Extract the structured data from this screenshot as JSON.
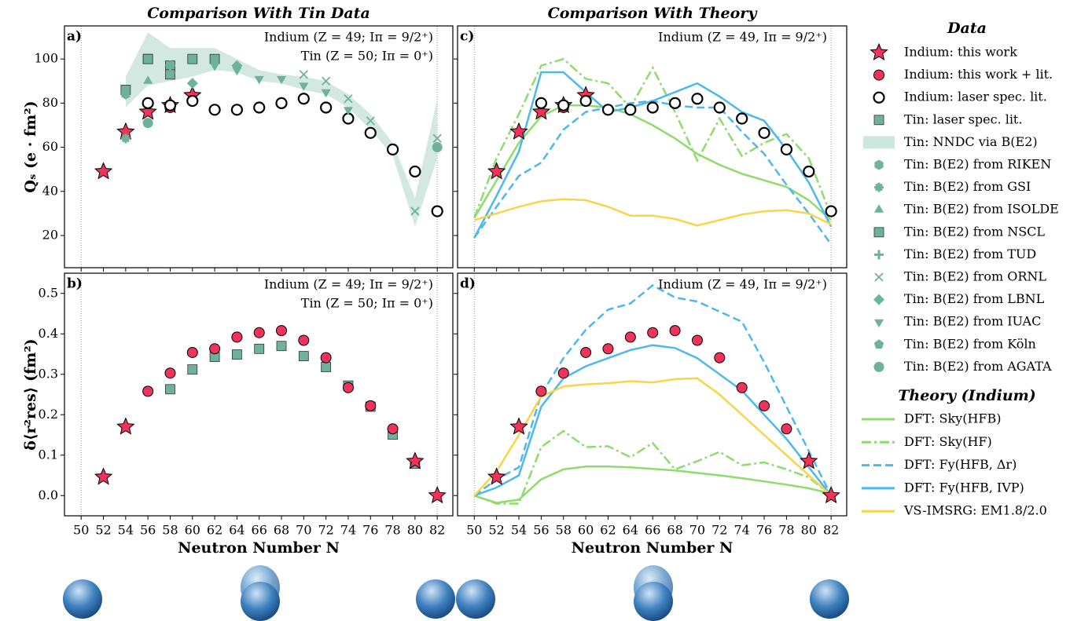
{
  "chart_data": [
    {
      "type": "scatter",
      "title": "Comparison With Tin Data",
      "label": "a)",
      "ylabel": "Qₛ (e · fm²)",
      "legend_title": "Data",
      "annotations": [
        {
          "text": "Indium (Z = 49; Iπ = 9/2⁺)",
          "color": "#e8345a"
        },
        {
          "text": "Tin (Z = 50; Iπ = 0⁺)",
          "color": "#5fa88f"
        }
      ],
      "xlim": [
        48.5,
        83.4
      ],
      "ylim": [
        5.4,
        115
      ],
      "xticks": [
        50,
        52,
        54,
        56,
        58,
        60,
        62,
        64,
        66,
        68,
        70,
        72,
        74,
        76,
        78,
        80,
        82
      ],
      "yticks": [
        20,
        40,
        60,
        80,
        100
      ],
      "series": [
        {
          "name": "Indium: this work",
          "marker": "star",
          "color": "#f0335a",
          "x": [
            52,
            54,
            56,
            58,
            60
          ],
          "values": [
            49,
            67,
            76,
            79,
            83.5
          ]
        },
        {
          "name": "Indium: this work + lit.",
          "marker": "circle",
          "color": "#f0335a",
          "x": [
            58,
            60,
            62,
            64,
            66
          ],
          "values": [
            78,
            81,
            77,
            77,
            78
          ]
        },
        {
          "name": "Indium: laser spec. lit.",
          "marker": "open-circle",
          "color": "#000000",
          "x": [
            56,
            58,
            60,
            62,
            64,
            66,
            68,
            70,
            72,
            74,
            76,
            78,
            80,
            82
          ],
          "values": [
            80,
            79,
            81,
            77,
            77,
            78,
            80,
            82,
            78,
            73,
            66.5,
            59,
            49,
            31
          ]
        },
        {
          "name": "Tin: laser spec. lit.",
          "marker": "square",
          "color": "#6fb29c",
          "x": [
            54,
            56,
            58,
            60,
            62
          ],
          "values": [
            86,
            100,
            97,
            100,
            100
          ]
        },
        {
          "name": "Tin: NNDC via B(E2)",
          "marker": "band",
          "color": "#cde6de",
          "x": [
            54,
            56,
            58,
            60,
            62,
            64,
            66,
            68,
            70,
            72,
            74,
            76,
            78,
            80,
            82
          ],
          "lower": [
            78,
            88,
            90,
            92,
            95,
            94,
            90,
            89,
            86,
            84,
            78,
            68,
            56,
            24,
            55
          ],
          "upper": [
            92,
            112,
            105,
            105,
            105,
            100,
            95,
            93,
            92,
            90,
            84,
            75,
            62,
            37,
            82
          ]
        },
        {
          "name": "Tin: B(E2) from RIKEN",
          "marker": "hexagon",
          "color": "#6fb29c",
          "x": [
            54
          ],
          "values": [
            84
          ]
        },
        {
          "name": "Tin: B(E2) from GSI",
          "marker": "cross",
          "color": "#6fb29c",
          "x": [
            54
          ],
          "values": [
            64
          ]
        },
        {
          "name": "Tin: B(E2) from ISOLDE",
          "marker": "triangle",
          "color": "#6fb29c",
          "x": [
            56,
            58
          ],
          "values": [
            90,
            95
          ]
        },
        {
          "name": "Tin: B(E2) from NSCL",
          "marker": "square",
          "color": "#6fb29c",
          "x": [
            56,
            58
          ],
          "values": [
            100,
            93
          ]
        },
        {
          "name": "Tin: B(E2) from TUD",
          "marker": "plus",
          "color": "#6fb29c",
          "x": [
            58
          ],
          "values": [
            97
          ]
        },
        {
          "name": "Tin: B(E2) from ORNL",
          "marker": "x",
          "color": "#6fb29c",
          "x": [
            70,
            72,
            74,
            76,
            80,
            82
          ],
          "values": [
            93,
            90,
            82,
            72,
            31,
            64
          ]
        },
        {
          "name": "Tin: B(E2) from LBNL",
          "marker": "diamond",
          "color": "#6fb29c",
          "x": [
            60,
            64
          ],
          "values": [
            89,
            97
          ]
        },
        {
          "name": "Tin: B(E2) from IUAC",
          "marker": "triangle-down",
          "color": "#6fb29c",
          "x": [
            62,
            64,
            66,
            68,
            70,
            72,
            74
          ],
          "values": [
            97,
            95,
            91,
            91,
            88,
            85,
            77
          ]
        },
        {
          "name": "Tin: B(E2) from Köln",
          "marker": "pentagon",
          "color": "#6fb29c",
          "x": [
            58
          ],
          "values": [
            93
          ]
        },
        {
          "name": "Tin: B(E2) from AGATA",
          "marker": "circle",
          "color": "#6fb29c",
          "x": [
            56,
            82
          ],
          "values": [
            71,
            60
          ]
        }
      ]
    },
    {
      "type": "scatter",
      "title": "Comparison With Theory",
      "label": "c)",
      "legend_title": "Theory (Indium)",
      "annotations": [
        {
          "text": "Indium (Z = 49, Iπ = 9/2⁺)",
          "color": "#e8345a"
        }
      ],
      "xlim": [
        48.5,
        83.4
      ],
      "ylim": [
        5.4,
        115
      ],
      "xticks": [
        50,
        52,
        54,
        56,
        58,
        60,
        62,
        64,
        66,
        68,
        70,
        72,
        74,
        76,
        78,
        80,
        82
      ],
      "yticks": [
        20,
        40,
        60,
        80,
        100
      ],
      "series": [
        {
          "marker": "star",
          "color": "#f0335a",
          "x": [
            52,
            54,
            56,
            58,
            60
          ],
          "values": [
            49,
            67,
            76,
            79,
            83.5
          ]
        },
        {
          "marker": "circle",
          "color": "#f0335a",
          "x": [
            58,
            60,
            62,
            64,
            66
          ],
          "values": [
            78,
            81,
            77,
            77,
            78
          ]
        },
        {
          "marker": "open-circle",
          "color": "#000000",
          "x": [
            56,
            58,
            60,
            62,
            64,
            66,
            68,
            70,
            72,
            74,
            76,
            78,
            80,
            82
          ],
          "values": [
            80,
            79,
            81,
            77,
            77,
            78,
            80,
            82,
            78,
            73,
            66.5,
            59,
            49,
            31
          ]
        },
        {
          "name": "DFT: Sky(HFB)",
          "marker": "line",
          "dash": "solid",
          "color": "#8ddc6c",
          "x": [
            50,
            52,
            54,
            56,
            58,
            60,
            62,
            64,
            66,
            68,
            70,
            72,
            74,
            76,
            78,
            80,
            82
          ],
          "values": [
            28,
            45,
            62,
            74,
            79,
            79,
            78,
            75,
            70,
            64,
            57,
            52,
            48,
            45,
            42,
            36,
            27
          ]
        },
        {
          "name": "DFT: Sky(HF)",
          "marker": "line",
          "dash": "dashdot",
          "color": "#8ddc6c",
          "x": [
            50,
            52,
            54,
            56,
            58,
            60,
            62,
            64,
            66,
            68,
            70,
            72,
            74,
            76,
            78,
            80,
            82
          ],
          "values": [
            28,
            55,
            75,
            97,
            100,
            91,
            89,
            78,
            96,
            76,
            54,
            73,
            56,
            62,
            66,
            55,
            29
          ]
        },
        {
          "name": "DFT: Fy(HFB, Δr)",
          "marker": "line",
          "dash": "dashed",
          "color": "#4db8f0",
          "x": [
            50,
            52,
            54,
            56,
            58,
            60,
            62,
            64,
            66,
            68,
            70,
            72,
            74,
            76,
            78,
            80,
            82
          ],
          "values": [
            19,
            33,
            47,
            53,
            68,
            76,
            78,
            80,
            81,
            79,
            78,
            78,
            67,
            57,
            43,
            30,
            16
          ]
        },
        {
          "name": "DFT: Fy(HFB, IVP)",
          "marker": "line",
          "dash": "solid",
          "color": "#4db8f0",
          "x": [
            50,
            52,
            54,
            56,
            58,
            60,
            62,
            64,
            66,
            68,
            70,
            72,
            74,
            76,
            78,
            80,
            82
          ],
          "values": [
            19,
            38,
            58,
            94,
            94,
            85,
            76,
            78,
            81,
            85,
            89,
            83,
            76,
            72,
            59,
            44,
            24
          ]
        },
        {
          "name": "VS-IMSRG: EM1.8/2.0",
          "marker": "line",
          "dash": "solid",
          "color": "#f8d548",
          "x": [
            50,
            52,
            54,
            56,
            58,
            60,
            62,
            64,
            66,
            68,
            70,
            72,
            74,
            76,
            78,
            80,
            82
          ],
          "values": [
            27,
            30,
            33,
            35.5,
            36.5,
            36,
            33,
            29,
            29,
            27.5,
            24.5,
            27,
            29.5,
            31,
            31.5,
            30,
            25
          ]
        }
      ]
    },
    {
      "type": "scatter",
      "label": "b)",
      "ylabel": "δ⟨r²res⟩ (fm²)",
      "xlabel": "Neutron Number N",
      "annotations": [
        {
          "text": "Indium (Z = 49; Iπ = 9/2⁺)",
          "color": "#e8345a"
        },
        {
          "text": "Tin (Z = 50; Iπ = 0⁺)",
          "color": "#5fa88f"
        }
      ],
      "xlim": [
        48.5,
        83.4
      ],
      "ylim": [
        -0.05,
        0.55
      ],
      "xticks": [
        50,
        52,
        54,
        56,
        58,
        60,
        62,
        64,
        66,
        68,
        70,
        72,
        74,
        76,
        78,
        80,
        82
      ],
      "yticks": [
        {
          "value": 0,
          "label": "0.0"
        },
        0.1,
        0.2,
        0.3,
        0.4,
        0.5
      ],
      "series": [
        {
          "marker": "square",
          "color": "#6fb29c",
          "x": [
            58,
            60,
            62,
            64,
            66,
            68,
            70,
            72,
            74,
            76,
            78,
            80
          ],
          "values": [
            0.263,
            0.312,
            0.343,
            0.349,
            0.363,
            0.37,
            0.345,
            0.318,
            0.272,
            0.22,
            0.151,
            0.079
          ]
        },
        {
          "marker": "star",
          "color": "#f0335a",
          "x": [
            52,
            54,
            80,
            82
          ],
          "values": [
            0.046,
            0.17,
            0.085,
            0
          ]
        },
        {
          "marker": "circle",
          "color": "#f0335a",
          "x": [
            56,
            58,
            60,
            62,
            64,
            66,
            68,
            70,
            72,
            74,
            76,
            78
          ],
          "values": [
            0.258,
            0.303,
            0.354,
            0.363,
            0.392,
            0.403,
            0.408,
            0.384,
            0.341,
            0.267,
            0.222,
            0.165
          ]
        }
      ]
    },
    {
      "type": "scatter",
      "label": "d)",
      "xlabel": "Neutron Number N",
      "annotations": [
        {
          "text": "Indium (Z = 49, Iπ = 9/2⁺)",
          "color": "#e8345a"
        }
      ],
      "xlim": [
        48.5,
        83.4
      ],
      "ylim": [
        -0.05,
        0.55
      ],
      "xticks": [
        50,
        52,
        54,
        56,
        58,
        60,
        62,
        64,
        66,
        68,
        70,
        72,
        74,
        76,
        78,
        80,
        82
      ],
      "yticks": [
        0,
        0.1,
        0.2,
        0.3,
        0.4,
        0.5
      ],
      "series": [
        {
          "marker": "line",
          "dash": "solid",
          "color": "#8ddc6c",
          "x": [
            50,
            52,
            54,
            56,
            58,
            60,
            62,
            64,
            66,
            68,
            70,
            72,
            74,
            76,
            78,
            80,
            82
          ],
          "values": [
            0,
            -0.018,
            -0.01,
            0.04,
            0.065,
            0.072,
            0.072,
            0.07,
            0.066,
            0.062,
            0.056,
            0.05,
            0.043,
            0.035,
            0.027,
            0.018,
            0.005
          ]
        },
        {
          "marker": "line",
          "dash": "dashdot",
          "color": "#8ddc6c",
          "x": [
            50,
            52,
            54,
            56,
            58,
            60,
            62,
            64,
            66,
            68,
            70,
            72,
            74,
            76,
            78,
            80,
            82
          ],
          "values": [
            0,
            -0.02,
            -0.02,
            0.12,
            0.16,
            0.12,
            0.122,
            0.095,
            0.13,
            0.065,
            0.085,
            0.108,
            0.075,
            0.082,
            0.065,
            0.045,
            0
          ]
        },
        {
          "marker": "line",
          "dash": "dashed",
          "color": "#4db8f0",
          "x": [
            50,
            52,
            54,
            56,
            58,
            60,
            62,
            64,
            66,
            68,
            70,
            72,
            74,
            76,
            78,
            80,
            82
          ],
          "values": [
            0,
            0.04,
            0.07,
            0.25,
            0.34,
            0.41,
            0.46,
            0.475,
            0.52,
            0.49,
            0.48,
            0.455,
            0.43,
            0.33,
            0.22,
            0.11,
            0
          ]
        },
        {
          "marker": "line",
          "dash": "solid",
          "color": "#4db8f0",
          "x": [
            50,
            52,
            54,
            56,
            58,
            60,
            62,
            64,
            66,
            68,
            70,
            72,
            74,
            76,
            78,
            80,
            82
          ],
          "values": [
            0,
            0.02,
            0.05,
            0.22,
            0.29,
            0.32,
            0.34,
            0.36,
            0.372,
            0.365,
            0.34,
            0.3,
            0.26,
            0.2,
            0.14,
            0.07,
            0
          ]
        },
        {
          "marker": "line",
          "dash": "solid",
          "color": "#f8d548",
          "x": [
            50,
            52,
            54,
            56,
            58,
            60,
            62,
            64,
            66,
            68,
            70,
            72,
            74,
            76,
            78,
            80,
            82
          ],
          "values": [
            0,
            0.06,
            0.15,
            0.245,
            0.27,
            0.275,
            0.278,
            0.283,
            0.28,
            0.288,
            0.29,
            0.25,
            0.2,
            0.15,
            0.1,
            0.05,
            0
          ]
        },
        {
          "marker": "star",
          "color": "#f0335a",
          "x": [
            52,
            54,
            80,
            82
          ],
          "values": [
            0.046,
            0.17,
            0.085,
            0
          ]
        },
        {
          "marker": "circle",
          "color": "#f0335a",
          "x": [
            56,
            58,
            60,
            62,
            64,
            66,
            68,
            70,
            72,
            74,
            76,
            78
          ],
          "values": [
            0.258,
            0.303,
            0.354,
            0.363,
            0.392,
            0.403,
            0.408,
            0.384,
            0.341,
            0.267,
            0.222,
            0.165
          ]
        }
      ]
    }
  ]
}
